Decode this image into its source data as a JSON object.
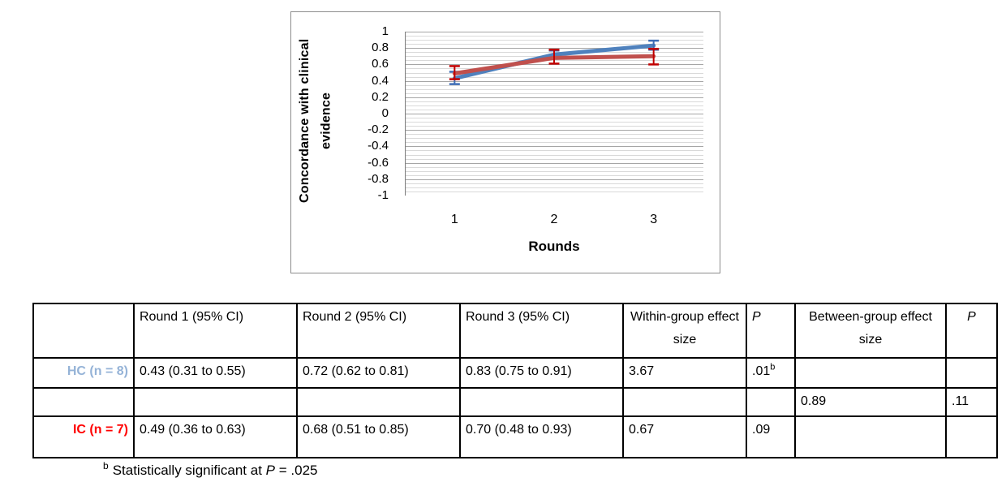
{
  "chart": {
    "y_axis_title": "Concordance with clinical evidence",
    "x_axis_title": "Rounds",
    "y_tick_labels": [
      "1",
      "0.8",
      "0.6",
      "0.4",
      "0.2",
      "0",
      "-0.2",
      "-0.4",
      "-0.6",
      "-0.8",
      "-1"
    ],
    "x_tick_labels": [
      "1",
      "2",
      "3"
    ]
  },
  "chart_data": {
    "type": "line",
    "x": [
      1,
      2,
      3
    ],
    "xlabel": "Rounds",
    "ylabel": "Concordance with clinical evidence",
    "ylim": [
      -1,
      1
    ],
    "y_major_step": 0.2,
    "y_minor_step": 0.05,
    "grid": "horizontal",
    "legend": "none",
    "series": [
      {
        "name": "HC (n = 8)",
        "values": [
          0.43,
          0.72,
          0.83
        ],
        "error_low": [
          0.36,
          0.67,
          0.78
        ],
        "error_high": [
          0.51,
          0.77,
          0.89
        ],
        "color": "#4F81BD",
        "error_color": "#3E6DB5"
      },
      {
        "name": "IC (n = 7)",
        "values": [
          0.49,
          0.68,
          0.7
        ],
        "error_low": [
          0.42,
          0.61,
          0.6
        ],
        "error_high": [
          0.58,
          0.78,
          0.79
        ],
        "color": "#C0504D",
        "error_color": "#C00000"
      }
    ]
  },
  "table": {
    "col_headers": [
      "",
      "Round 1 (95% CI)",
      "Round 2 (95% CI)",
      "Round 3 (95% CI)",
      "Within-group effect size",
      "P",
      "Between-group effect size",
      "P"
    ],
    "rows": [
      {
        "label": "HC (n = 8)",
        "round1": "0.43 (0.31 to 0.55)",
        "round2": "0.72 (0.62 to 0.81)",
        "round3": "0.83 (0.75 to 0.91)",
        "within_es": "3.67",
        "p_within": ".01",
        "p_within_sup": "b",
        "between_es": "",
        "p_between": ""
      },
      {
        "label": "",
        "round1": "",
        "round2": "",
        "round3": "",
        "within_es": "",
        "p_within": "",
        "p_within_sup": "",
        "between_es": "0.89",
        "p_between": ".11"
      },
      {
        "label": "IC (n = 7)",
        "round1": "0.49 (0.36 to 0.63)",
        "round2": "0.68 (0.51 to 0.85)",
        "round3": "0.70 (0.48 to 0.93)",
        "within_es": "0.67",
        "p_within": ".09",
        "p_within_sup": "",
        "between_es": "",
        "p_between": ""
      }
    ]
  },
  "footnote": {
    "marker": "b",
    "text": "Statistically significant at",
    "p_symbol": "P",
    "value": "= .025"
  },
  "colors": {
    "hc_label": "#95B3D7",
    "ic_label": "#FF0000",
    "hc_line": "#4F81BD",
    "ic_line": "#C0504D",
    "grid_minor": "#D9D9D9",
    "grid_major": "#A6A6A6",
    "axis": "#808080",
    "chart_border": "#8C8C8C",
    "table_border": "#000000"
  }
}
